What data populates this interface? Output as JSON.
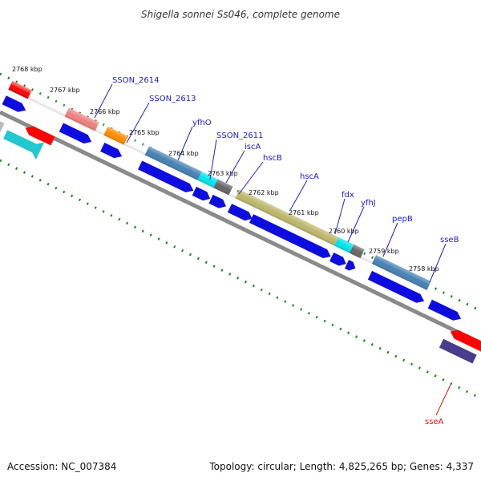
{
  "title": "Shigella sonnei Ss046, complete genome",
  "footer": {
    "accession": "Accession: NC_007384",
    "summary": "Topology: circular; Length: 4,825,265 bp; Genes: 4,337"
  },
  "scale_labels": [
    "2768 kbp",
    "2767 kbp",
    "2766 kbp",
    "2765 kbp",
    "2764 kbp",
    "2763 kbp",
    "2762 kbp",
    "2761 kbp",
    "2760 kbp",
    "2759 kbp",
    "2758 kbp"
  ],
  "gene_labels": [
    "SSON_2614",
    "SSON_2613",
    "yfhO",
    "SSON_2611",
    "iscA",
    "hscB",
    "hscA",
    "fdx",
    "yfhJ",
    "pepB",
    "sseB",
    "sseA"
  ],
  "colors": {
    "label_blue": "#1a1acc",
    "label_red": "#dd1111",
    "cds_blue": "#0d0de0",
    "tick_green": "#1e8a1e",
    "backbone": "#8a8a8a"
  }
}
